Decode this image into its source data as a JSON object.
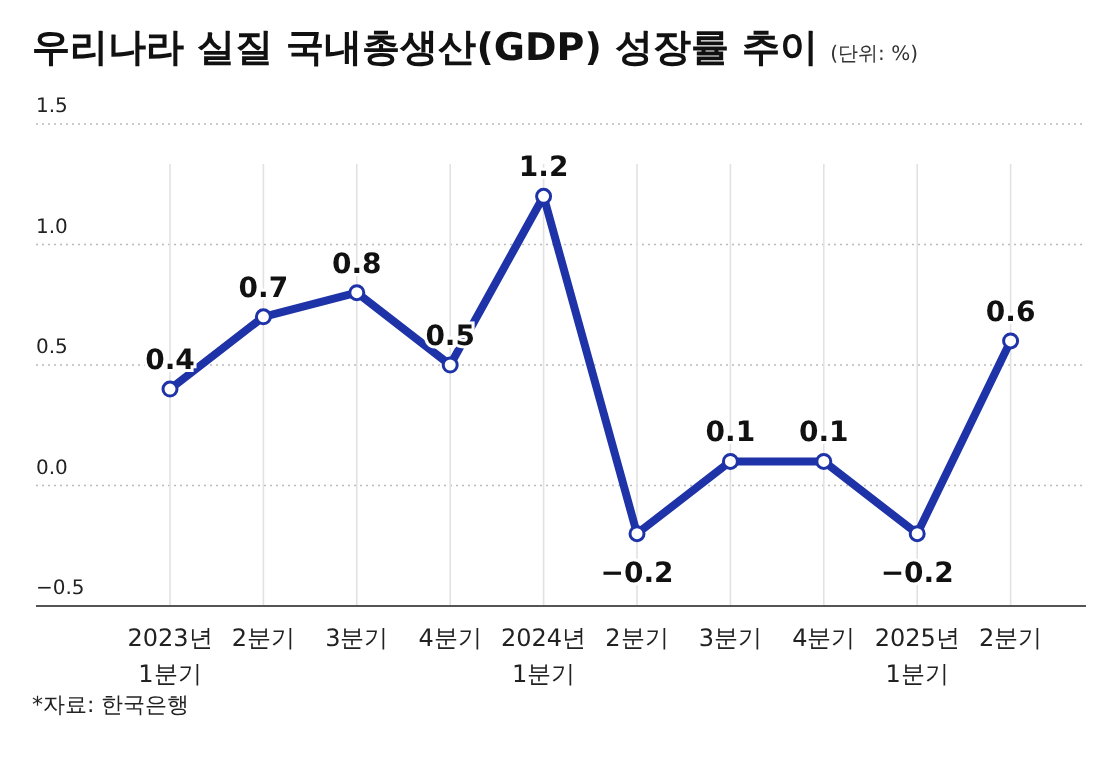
{
  "chart_data": {
    "type": "line",
    "title": "우리나라 실질 국내총생산(GDP) 성장률 추이",
    "subtitle": "(단위: %)",
    "categories": [
      "2023년\n1분기",
      "2분기",
      "3분기",
      "4분기",
      "2024년\n1분기",
      "2분기",
      "3분기",
      "4분기",
      "2025년\n1분기",
      "2분기"
    ],
    "series": [
      {
        "color": "#1f33a8",
        "values": [
          0.4,
          0.7,
          0.8,
          0.5,
          1.2,
          -0.2,
          0.1,
          0.1,
          -0.2,
          0.6
        ]
      }
    ],
    "ylim": [
      -0.5,
      1.5
    ],
    "yticks": [
      {
        "value": -0.5,
        "label": "−0.5"
      },
      {
        "value": 0,
        "label": "0.0"
      },
      {
        "value": 0.5,
        "label": "0.5"
      },
      {
        "value": 1,
        "label": "1.0"
      },
      {
        "value": 1.5,
        "label": "1.5"
      }
    ],
    "grid": true,
    "marker": "circle",
    "line_style": "solid",
    "data_labels": true,
    "annotations": [
      "*자료: 한국은행"
    ]
  }
}
